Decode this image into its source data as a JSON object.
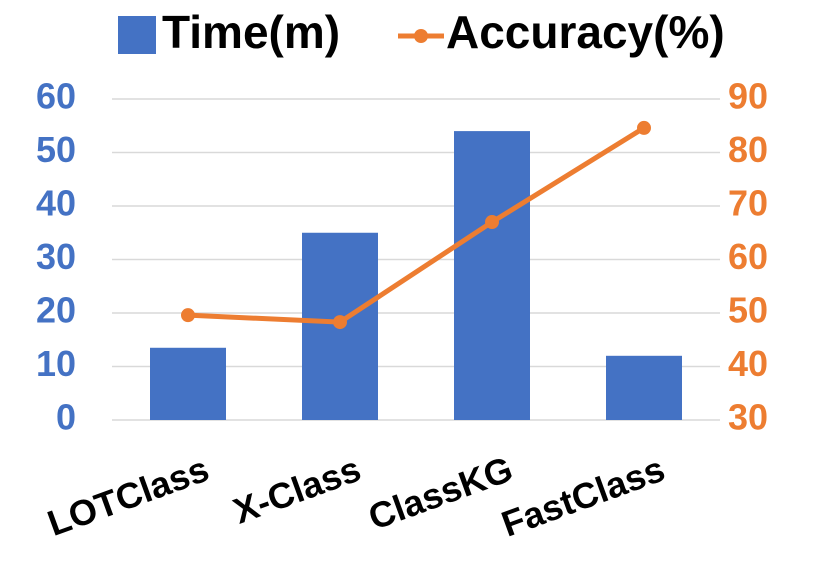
{
  "chart_data": {
    "type": "bar",
    "categories": [
      "LOTClass",
      "X-Class",
      "ClassKG",
      "FastClass"
    ],
    "series": [
      {
        "name": "Time(m)",
        "type": "bar",
        "color": "#4472c4",
        "values": [
          13.5,
          35,
          54,
          12
        ]
      },
      {
        "name": "Accuracy(%)",
        "type": "line",
        "axis": "y2",
        "color": "#ed7d31",
        "values": [
          49.6,
          48.3,
          67,
          84.6
        ]
      }
    ],
    "ylim": [
      0,
      60
    ],
    "yticks": [
      0,
      10,
      20,
      30,
      40,
      50,
      60
    ],
    "y2lim": [
      30,
      90
    ],
    "y2ticks": [
      30,
      40,
      50,
      60,
      70,
      80,
      90
    ],
    "grid": true,
    "legend": "top"
  }
}
